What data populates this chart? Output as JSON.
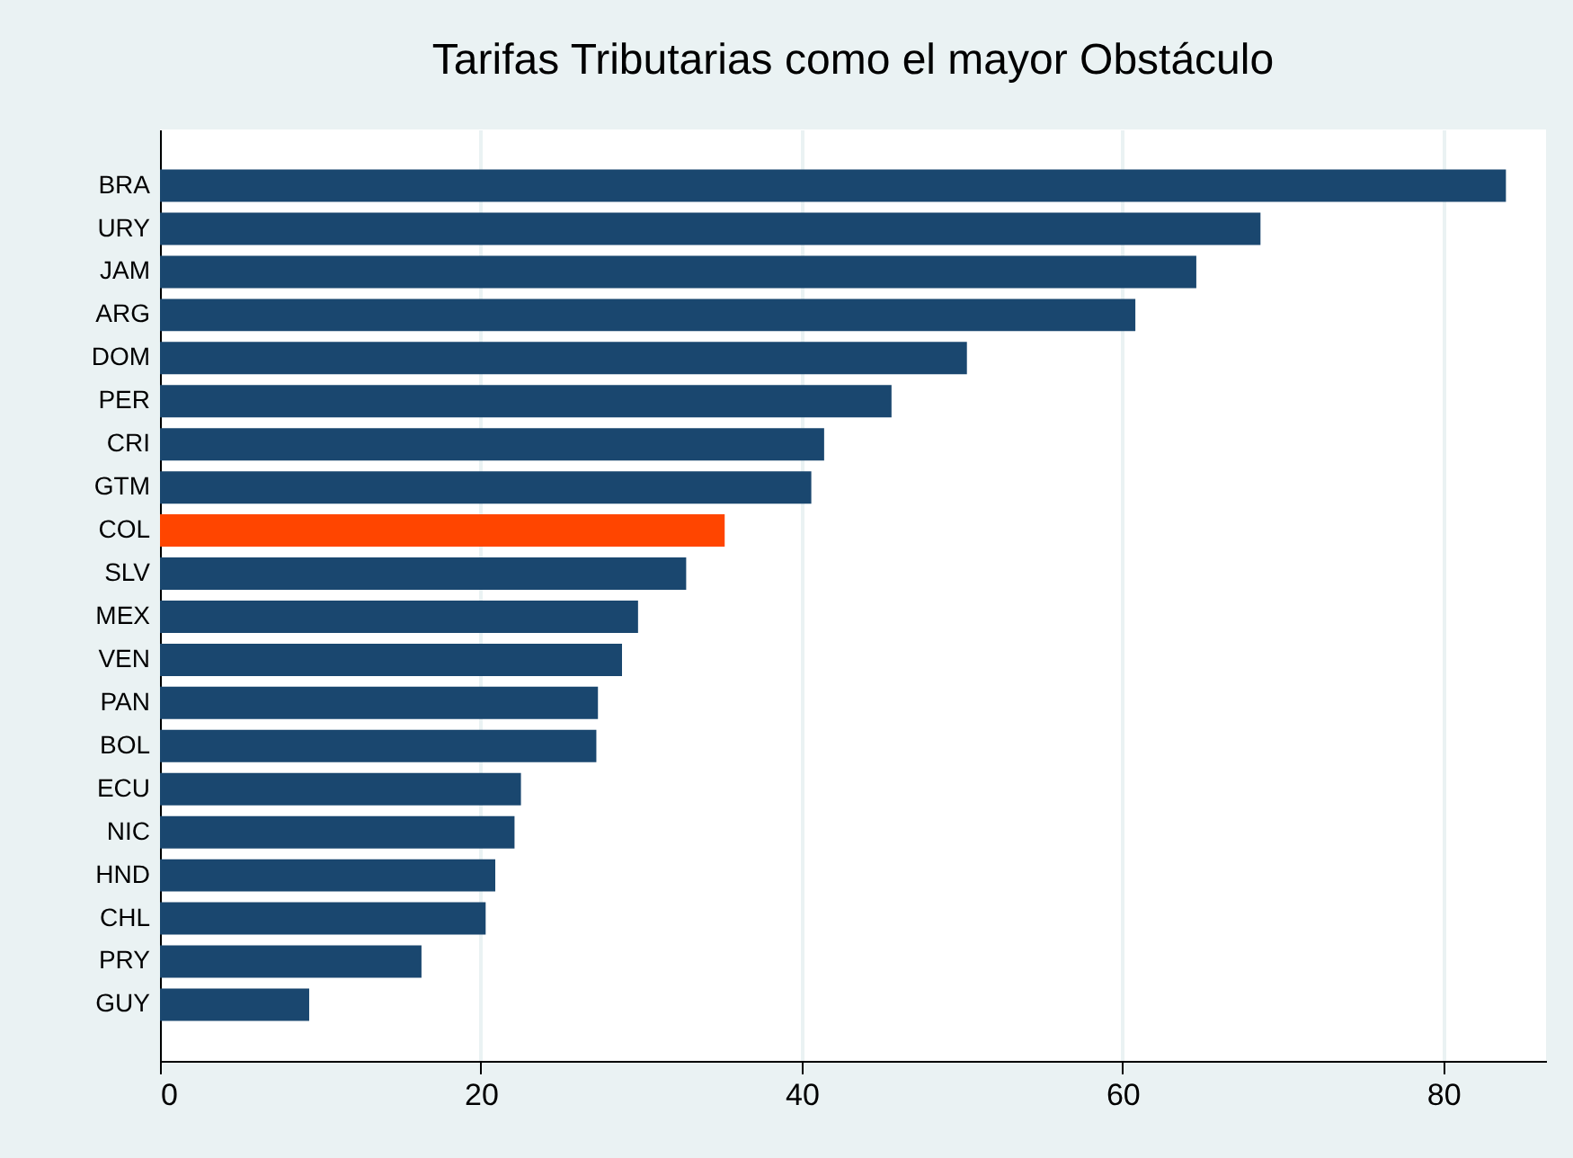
{
  "chart_data": {
    "type": "bar",
    "orientation": "horizontal",
    "title": "Tarifas Tributarias como el mayor Obstáculo",
    "categories": [
      "BRA",
      "URY",
      "JAM",
      "ARG",
      "DOM",
      "PER",
      "CRI",
      "GTM",
      "COL",
      "SLV",
      "MEX",
      "VEN",
      "PAN",
      "BOL",
      "ECU",
      "NIC",
      "HND",
      "CHL",
      "PRY",
      "GUY"
    ],
    "values": [
      83.9,
      68.6,
      64.6,
      60.8,
      50.3,
      45.6,
      41.4,
      40.6,
      35.2,
      32.8,
      29.8,
      28.8,
      27.3,
      27.2,
      22.5,
      22.1,
      20.9,
      20.3,
      16.3,
      9.3
    ],
    "colors": [
      "#1a476f",
      "#1a476f",
      "#1a476f",
      "#1a476f",
      "#1a476f",
      "#1a476f",
      "#1a476f",
      "#1a476f",
      "#ff4500",
      "#1a476f",
      "#1a476f",
      "#1a476f",
      "#1a476f",
      "#1a476f",
      "#1a476f",
      "#1a476f",
      "#1a476f",
      "#1a476f",
      "#1a476f",
      "#1a476f"
    ],
    "xlim": [
      0,
      86.4
    ],
    "xticks": [
      0,
      20,
      40,
      60,
      80
    ],
    "grid": "x"
  }
}
